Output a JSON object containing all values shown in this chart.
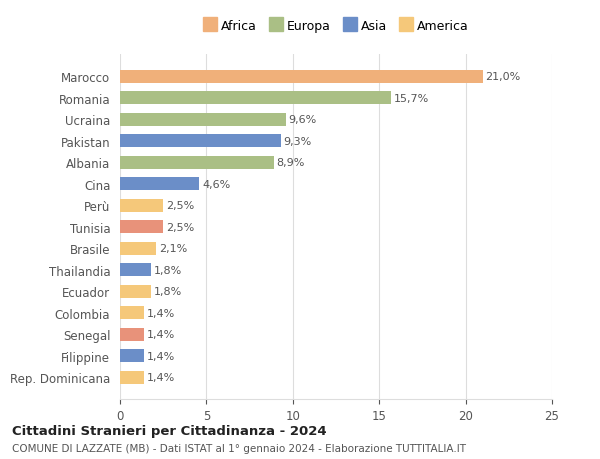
{
  "categories": [
    "Rep. Dominicana",
    "Filippine",
    "Senegal",
    "Colombia",
    "Ecuador",
    "Thailandia",
    "Brasile",
    "Tunisia",
    "Perù",
    "Cina",
    "Albania",
    "Pakistan",
    "Ucraina",
    "Romania",
    "Marocco"
  ],
  "values": [
    1.4,
    1.4,
    1.4,
    1.4,
    1.8,
    1.8,
    2.1,
    2.5,
    2.5,
    4.6,
    8.9,
    9.3,
    9.6,
    15.7,
    21.0
  ],
  "labels": [
    "1,4%",
    "1,4%",
    "1,4%",
    "1,4%",
    "1,8%",
    "1,8%",
    "2,1%",
    "2,5%",
    "2,5%",
    "4,6%",
    "8,9%",
    "9,3%",
    "9,6%",
    "15,7%",
    "21,0%"
  ],
  "colors": [
    "#F5C87A",
    "#6B8EC8",
    "#E8927A",
    "#F5C87A",
    "#F5C87A",
    "#6B8EC8",
    "#F5C87A",
    "#E8927A",
    "#F5C87A",
    "#6B8EC8",
    "#AABF85",
    "#6B8EC8",
    "#AABF85",
    "#AABF85",
    "#F0B07A"
  ],
  "legend": {
    "Africa": "#F0B07A",
    "Europa": "#AABF85",
    "Asia": "#6B8EC8",
    "America": "#F5C87A"
  },
  "xlim": [
    0,
    25
  ],
  "xticks": [
    0,
    5,
    10,
    15,
    20,
    25
  ],
  "title": "Cittadini Stranieri per Cittadinanza - 2024",
  "subtitle": "COMUNE DI LAZZATE (MB) - Dati ISTAT al 1° gennaio 2024 - Elaborazione TUTTITALIA.IT",
  "background_color": "#ffffff",
  "grid_color": "#dddddd",
  "bar_height": 0.6,
  "africa_color": "#F0B07A",
  "europa_color": "#AABF85",
  "asia_color": "#6B8EC8",
  "america_color": "#F5C87A",
  "africa_senegal_color": "#E8927A",
  "africa_tunisia_color": "#E8927A"
}
